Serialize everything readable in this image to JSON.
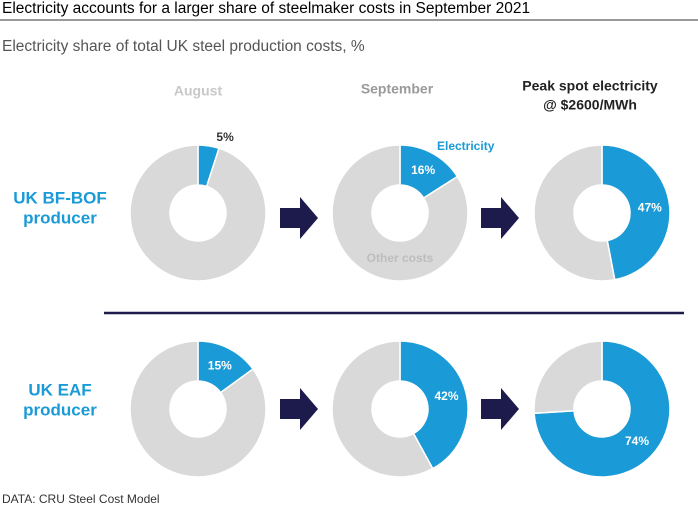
{
  "title": "Electricity accounts for a larger share of steelmaker costs in September 2021",
  "subtitle": "Electricity share of total UK steel production costs, %",
  "source": "DATA: CRU Steel Cost Model",
  "columns": [
    "August",
    "September",
    [
      "Peak spot electricity",
      "@ $2600/MWh"
    ]
  ],
  "rows": [
    [
      "UK BF-BOF",
      "producer"
    ],
    [
      "UK EAF",
      "producer"
    ]
  ],
  "categories": [
    "Electricity",
    "Other costs"
  ],
  "colors": [
    "#1a9ad6",
    "#d9d9d9"
  ],
  "chart_data": [
    {
      "type": "pie",
      "values": [
        5,
        95
      ],
      "value_labels": [
        "5%",
        null
      ]
    },
    {
      "type": "pie",
      "values": [
        16,
        84
      ],
      "value_labels": [
        "16%",
        null
      ]
    },
    {
      "type": "pie",
      "values": [
        47,
        53
      ],
      "value_labels": [
        "47%",
        null
      ]
    },
    {
      "type": "pie",
      "values": [
        15,
        85
      ],
      "value_labels": [
        "15%",
        null
      ]
    },
    {
      "type": "pie",
      "values": [
        42,
        58
      ],
      "value_labels": [
        "42%",
        null
      ]
    },
    {
      "type": "pie",
      "values": [
        74,
        26
      ],
      "value_labels": [
        "74%",
        null
      ]
    }
  ]
}
